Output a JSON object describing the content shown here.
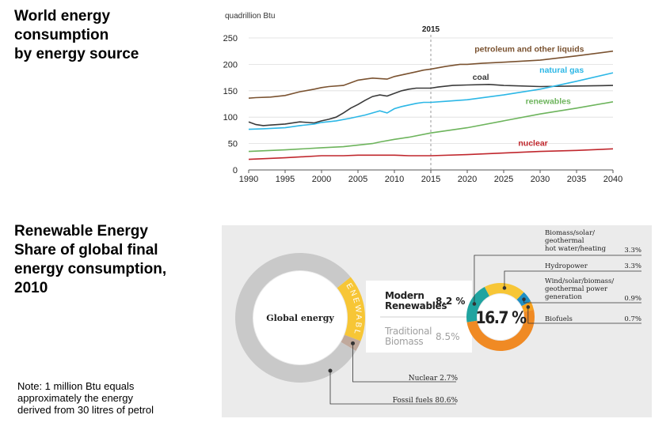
{
  "headings": {
    "world_energy": "World energy\nconsumption\nby energy source",
    "renewable": "Renewable Energy\nShare of global final\nenergy consumption,\n2010"
  },
  "note": "Note: 1 million Btu equals\napproximately the energy\nderived from 30 litres of petrol",
  "chart_data": [
    {
      "type": "line",
      "ylabel": "quadrillion Btu",
      "xlim": [
        1990,
        2040
      ],
      "ylim": [
        0,
        250
      ],
      "x_ticks": [
        1990,
        1995,
        2000,
        2005,
        2010,
        2015,
        2020,
        2025,
        2030,
        2035,
        2040
      ],
      "y_ticks": [
        0,
        50,
        100,
        150,
        200,
        250
      ],
      "grid": true,
      "annotation": {
        "label": "2015",
        "x": 2015
      },
      "series": [
        {
          "name": "petroleum and other liquids",
          "color": "#7a5230",
          "x": [
            1990,
            1991,
            1993,
            1995,
            1997,
            1999,
            2000,
            2001,
            2003,
            2004,
            2005,
            2006,
            2007,
            2008,
            2009,
            2010,
            2011,
            2012,
            2013,
            2014,
            2015,
            2017,
            2019,
            2020,
            2022,
            2025,
            2030,
            2035,
            2040
          ],
          "y": [
            136,
            137,
            138,
            141,
            148,
            153,
            156,
            158,
            160,
            165,
            170,
            172,
            174,
            173,
            172,
            177,
            180,
            183,
            186,
            189,
            191,
            196,
            200,
            200,
            202,
            204,
            208,
            216,
            225
          ]
        },
        {
          "name": "coal",
          "color": "#3a3a3a",
          "x": [
            1990,
            1991,
            1992,
            1993,
            1995,
            1997,
            1999,
            2000,
            2001,
            2002,
            2003,
            2004,
            2005,
            2006,
            2007,
            2008,
            2009,
            2010,
            2011,
            2012,
            2013,
            2014,
            2015,
            2016,
            2018,
            2020,
            2023,
            2025,
            2030,
            2035,
            2040
          ],
          "y": [
            91,
            86,
            84,
            85,
            87,
            91,
            89,
            93,
            96,
            100,
            108,
            117,
            124,
            132,
            139,
            142,
            140,
            145,
            150,
            153,
            155,
            155,
            155,
            157,
            160,
            161,
            162,
            160,
            158,
            159,
            160
          ]
        },
        {
          "name": "natural gas",
          "color": "#2cb7e6",
          "x": [
            1990,
            1992,
            1995,
            1997,
            1999,
            2000,
            2002,
            2004,
            2005,
            2006,
            2007,
            2008,
            2009,
            2010,
            2011,
            2012,
            2013,
            2014,
            2015,
            2017,
            2020,
            2025,
            2030,
            2035,
            2040
          ],
          "y": [
            77,
            78,
            80,
            84,
            87,
            90,
            93,
            98,
            101,
            104,
            108,
            112,
            108,
            116,
            120,
            123,
            126,
            128,
            128,
            130,
            133,
            142,
            153,
            168,
            184
          ]
        },
        {
          "name": "renewables",
          "color": "#6db45c",
          "x": [
            1990,
            1995,
            2000,
            2003,
            2005,
            2007,
            2008,
            2010,
            2012,
            2015,
            2020,
            2025,
            2030,
            2035,
            2040
          ],
          "y": [
            35,
            38,
            42,
            44,
            47,
            50,
            53,
            58,
            62,
            70,
            80,
            93,
            106,
            117,
            129
          ]
        },
        {
          "name": "nuclear",
          "color": "#c0272d",
          "x": [
            1990,
            1995,
            2000,
            2003,
            2005,
            2007,
            2010,
            2012,
            2015,
            2020,
            2025,
            2030,
            2035,
            2040
          ],
          "y": [
            20,
            23,
            27,
            27,
            28,
            28,
            28,
            27,
            27,
            29,
            32,
            35,
            37,
            40
          ]
        }
      ]
    },
    {
      "type": "pie",
      "center_label": "Global energy",
      "ring_label": "RENEWABLE",
      "slices": [
        {
          "label": "Renewables",
          "value": 16.7,
          "color": "#f7c636"
        },
        {
          "label": "Nuclear",
          "value": 2.7,
          "color": "#c0a99c"
        },
        {
          "label": "Fossil fuels",
          "value": 80.6,
          "color": "#c9c9c9"
        }
      ],
      "renewable_split": [
        {
          "label": "Modern Renewables",
          "value": "8.2 %"
        },
        {
          "label": "Traditional Biomass",
          "value": "8.5%"
        }
      ],
      "callouts": [
        {
          "label": "Nuclear",
          "value": "2.7%"
        },
        {
          "label": "Fossil fuels",
          "value": "80.6%"
        }
      ]
    },
    {
      "type": "pie",
      "center_label": "16.7 %",
      "slices": [
        {
          "label": "Biomass/solar/geothermal hot water/heating",
          "value": 3.3,
          "display": "3.3%",
          "color": "#20a4a0"
        },
        {
          "label": "Hydropower",
          "value": 3.3,
          "display": "3.3%",
          "color": "#f7c636"
        },
        {
          "label": "Wind/solar/biomass/geothermal power generation",
          "value": 0.9,
          "display": "0.9%",
          "color": "#1f8fc4"
        },
        {
          "label": "Biofuels",
          "value": 0.7,
          "display": "0.7%",
          "color": "#f7a21e"
        },
        {
          "label": "Traditional Biomass",
          "value": 8.5,
          "color": "#f08a24"
        }
      ],
      "legend_labels": [
        "Biomass/solar/\ngeothermal\nhot water/heating",
        "Hydropower",
        "Wind/solar/biomass/\ngeothermal power\ngeneration",
        "Biofuels"
      ]
    }
  ]
}
